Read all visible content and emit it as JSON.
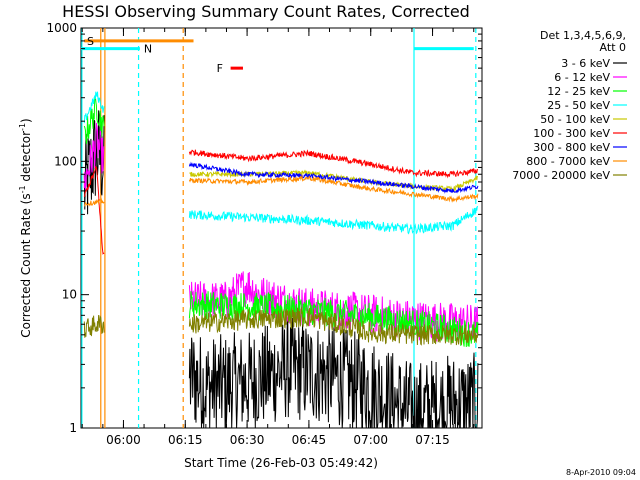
{
  "chart_data": {
    "type": "line",
    "title": "HESSI Observing Summary Count Rates, Corrected",
    "xlabel": "Start Time (26-Feb-03 05:49:42)",
    "ylabel_main": "Corrected Count Rate (s",
    "ylabel_sup1": "-1",
    "ylabel_mid": " detector",
    "ylabel_sup2": "-1",
    "ylabel_end": ")",
    "ylog": true,
    "xlim": [
      "05:49:42",
      "07:27:00"
    ],
    "ylim": [
      1,
      1000
    ],
    "x_ticks": [
      "06:00",
      "06:15",
      "06:30",
      "06:45",
      "07:00",
      "07:15"
    ],
    "y_ticks": [
      "1",
      "10",
      "100",
      "1000"
    ],
    "legend_header": [
      "Det 1,3,4,5,6,9,",
      "Att 0"
    ],
    "legend_placement": "top-right outside plot",
    "timestamp": "8-Apr-2010 09:04",
    "flags": {
      "S": {
        "label": "S",
        "color": "#ff8c00",
        "start": "05:50:30",
        "end": "06:17:00",
        "level": 800
      },
      "N": {
        "label": "N",
        "color": "#00ffff",
        "start": "05:49:42",
        "end": "06:04:00",
        "level": 700
      },
      "N2": {
        "label": "",
        "color": "#00ffff",
        "start": "07:10:30",
        "end": "07:25:00",
        "level": 700
      },
      "F": {
        "label": "F",
        "color": "#ff0000",
        "start": "06:26:00",
        "end": "06:29:00",
        "level": 500
      }
    },
    "vertical_markers": [
      {
        "time": "05:49:55",
        "color": "#00ffff",
        "style": "solid"
      },
      {
        "time": "05:54:30",
        "color": "#ff8c00",
        "style": "solid"
      },
      {
        "time": "05:55:30",
        "color": "#ff8c00",
        "style": "solid"
      },
      {
        "time": "06:03:40",
        "color": "#00ffff",
        "style": "dashed"
      },
      {
        "time": "06:14:30",
        "color": "#ff8c00",
        "style": "dashed"
      },
      {
        "time": "07:10:30",
        "color": "#00ffff",
        "style": "solid"
      },
      {
        "time": "07:25:30",
        "color": "#00ffff",
        "style": "dashed"
      }
    ],
    "segments": [
      {
        "start": "05:50:30",
        "end": "05:55:20"
      },
      {
        "start": "06:16:00",
        "end": "07:26:00"
      }
    ],
    "series": [
      {
        "name": "3 - 6 keV",
        "color": "#000000",
        "noise": 0.9,
        "points": [
          [
            "05:50:30",
            60
          ],
          [
            "05:53:30",
            120
          ],
          [
            "05:55:00",
            100
          ],
          [
            "06:16:00",
            2.5
          ],
          [
            "06:20:00",
            2
          ],
          [
            "06:30:00",
            2.2
          ],
          [
            "06:40:00",
            2.8
          ],
          [
            "06:50:00",
            2.5
          ],
          [
            "07:00:00",
            2.0
          ],
          [
            "07:10:00",
            1.3
          ],
          [
            "07:20:00",
            1.5
          ],
          [
            "07:26:00",
            1.5
          ]
        ]
      },
      {
        "name": "6 - 12 keV",
        "color": "#ff00ff",
        "noise": 0.35,
        "points": [
          [
            "05:50:30",
            70
          ],
          [
            "05:53:30",
            140
          ],
          [
            "05:55:00",
            110
          ],
          [
            "06:16:00",
            9
          ],
          [
            "06:25:00",
            9
          ],
          [
            "06:30:00",
            12
          ],
          [
            "06:33:00",
            10
          ],
          [
            "06:45:00",
            8
          ],
          [
            "06:55:00",
            7.5
          ],
          [
            "07:10:00",
            6.5
          ],
          [
            "07:26:00",
            6
          ]
        ]
      },
      {
        "name": "12 - 25 keV",
        "color": "#00ff00",
        "noise": 0.25,
        "points": [
          [
            "05:50:30",
            150
          ],
          [
            "05:53:30",
            260
          ],
          [
            "05:55:00",
            180
          ],
          [
            "06:16:00",
            8.5
          ],
          [
            "06:30:00",
            8.2
          ],
          [
            "06:45:00",
            7.6
          ],
          [
            "07:00:00",
            6.8
          ],
          [
            "07:15:00",
            5.8
          ],
          [
            "07:26:00",
            5.0
          ]
        ]
      },
      {
        "name": "25 - 50 keV",
        "color": "#00ffff",
        "noise": 0.08,
        "points": [
          [
            "05:50:30",
            200
          ],
          [
            "05:53:30",
            320
          ],
          [
            "05:55:00",
            250
          ],
          [
            "06:16:00",
            40
          ],
          [
            "06:30:00",
            38
          ],
          [
            "06:45:00",
            36
          ],
          [
            "07:00:00",
            33
          ],
          [
            "07:10:00",
            31
          ],
          [
            "07:20:00",
            33
          ],
          [
            "07:26:00",
            44
          ]
        ]
      },
      {
        "name": "50 - 100 keV",
        "color": "#c8c800",
        "noise": 0.04,
        "points": [
          [
            "06:16:00",
            80
          ],
          [
            "06:30:00",
            80
          ],
          [
            "06:45:00",
            82
          ],
          [
            "07:00:00",
            70
          ],
          [
            "07:10:00",
            65
          ],
          [
            "07:20:00",
            62
          ],
          [
            "07:26:00",
            75
          ]
        ]
      },
      {
        "name": "100 - 300 keV",
        "color": "#ff0000",
        "noise": 0.05,
        "points": [
          [
            "05:50:30",
            55
          ],
          [
            "05:53:30",
            90
          ],
          [
            "05:55:00",
            20
          ],
          [
            "06:16:00",
            118
          ],
          [
            "06:30:00",
            105
          ],
          [
            "06:45:00",
            115
          ],
          [
            "07:00:00",
            95
          ],
          [
            "07:10:00",
            82
          ],
          [
            "07:20:00",
            80
          ],
          [
            "07:26:00",
            85
          ]
        ]
      },
      {
        "name": "300 - 800 keV",
        "color": "#0000ff",
        "noise": 0.04,
        "points": [
          [
            "06:16:00",
            95
          ],
          [
            "06:30:00",
            80
          ],
          [
            "06:45:00",
            78
          ],
          [
            "07:00:00",
            70
          ],
          [
            "07:10:00",
            65
          ],
          [
            "07:20:00",
            60
          ],
          [
            "07:26:00",
            65
          ]
        ]
      },
      {
        "name": "800 - 7000 keV",
        "color": "#ff8c00",
        "noise": 0.04,
        "points": [
          [
            "05:50:30",
            48
          ],
          [
            "05:55:00",
            50
          ],
          [
            "06:16:00",
            72
          ],
          [
            "06:30:00",
            70
          ],
          [
            "06:45:00",
            75
          ],
          [
            "07:00:00",
            62
          ],
          [
            "07:10:00",
            57
          ],
          [
            "07:20:00",
            52
          ],
          [
            "07:26:00",
            55
          ]
        ]
      },
      {
        "name": "7000 - 20000 keV",
        "color": "#808000",
        "noise": 0.18,
        "points": [
          [
            "05:50:30",
            5.5
          ],
          [
            "05:53:30",
            6.0
          ],
          [
            "05:55:00",
            6.0
          ],
          [
            "06:16:00",
            6
          ],
          [
            "06:30:00",
            6.5
          ],
          [
            "06:45:00",
            6.8
          ],
          [
            "07:00:00",
            5.2
          ],
          [
            "07:10:00",
            5
          ],
          [
            "07:26:00",
            5
          ]
        ]
      }
    ]
  }
}
